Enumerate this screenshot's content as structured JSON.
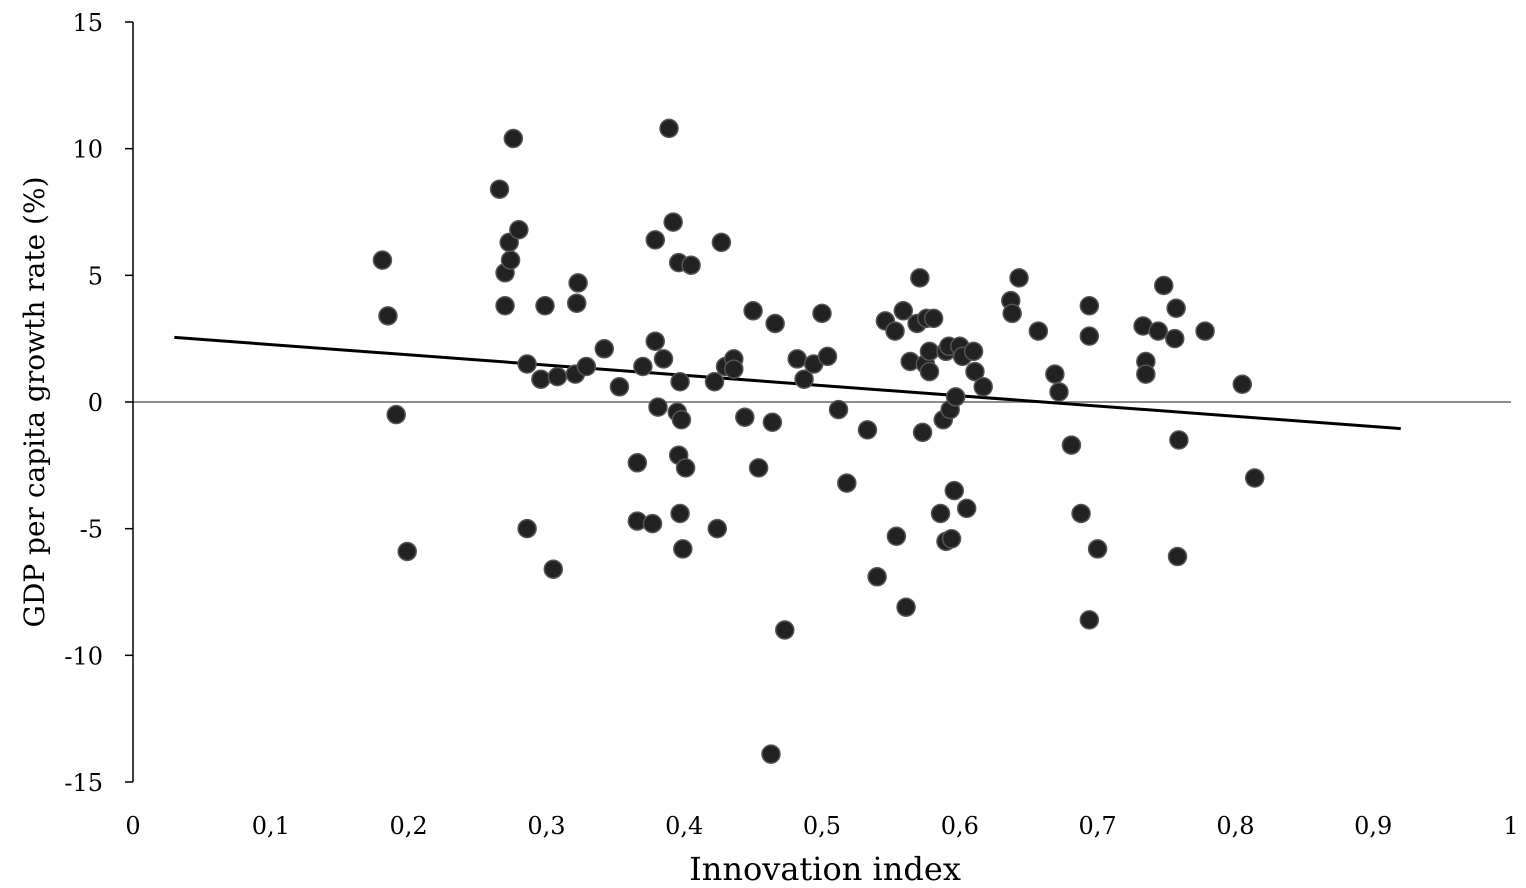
{
  "chart_data": {
    "type": "scatter",
    "title": "",
    "xlabel": "Innovation index",
    "ylabel": "GDP per capita growth rate (%)",
    "xlim": [
      0,
      1
    ],
    "ylim": [
      -15,
      15
    ],
    "x_ticks": [
      0,
      0.1,
      0.2,
      0.3,
      0.4,
      0.5,
      0.6,
      0.7,
      0.8,
      0.9,
      1
    ],
    "x_tick_labels": [
      "0",
      "0,1",
      "0,2",
      "0,3",
      "0,4",
      "0,5",
      "0,6",
      "0,7",
      "0,8",
      "0,9",
      "1"
    ],
    "y_ticks": [
      15,
      10,
      5,
      0,
      -5,
      -10,
      -15
    ],
    "y_tick_labels": [
      "15",
      "10",
      "5",
      "0",
      "-5",
      "-10",
      "-15"
    ],
    "grid": false,
    "reference_line_y": 0,
    "trendline": {
      "x": [
        0.03,
        0.92
      ],
      "y": [
        2.55,
        -1.05
      ]
    },
    "points": [
      [
        0.181,
        5.6
      ],
      [
        0.185,
        3.4
      ],
      [
        0.191,
        -0.5
      ],
      [
        0.199,
        -5.9
      ],
      [
        0.266,
        8.4
      ],
      [
        0.276,
        10.4
      ],
      [
        0.27,
        5.1
      ],
      [
        0.273,
        6.3
      ],
      [
        0.274,
        5.6
      ],
      [
        0.28,
        6.8
      ],
      [
        0.27,
        3.8
      ],
      [
        0.286,
        1.5
      ],
      [
        0.286,
        -5.0
      ],
      [
        0.296,
        0.9
      ],
      [
        0.299,
        3.8
      ],
      [
        0.305,
        -6.6
      ],
      [
        0.308,
        1.0
      ],
      [
        0.321,
        1.1
      ],
      [
        0.322,
        3.9
      ],
      [
        0.323,
        4.7
      ],
      [
        0.329,
        1.4
      ],
      [
        0.342,
        2.1
      ],
      [
        0.353,
        0.6
      ],
      [
        0.366,
        -2.4
      ],
      [
        0.366,
        -4.7
      ],
      [
        0.37,
        1.4
      ],
      [
        0.377,
        -4.8
      ],
      [
        0.379,
        6.4
      ],
      [
        0.379,
        2.4
      ],
      [
        0.381,
        -0.2
      ],
      [
        0.385,
        1.7
      ],
      [
        0.389,
        10.8
      ],
      [
        0.392,
        7.1
      ],
      [
        0.395,
        -0.4
      ],
      [
        0.396,
        5.5
      ],
      [
        0.396,
        -2.1
      ],
      [
        0.398,
        -0.7
      ],
      [
        0.397,
        0.8
      ],
      [
        0.397,
        -4.4
      ],
      [
        0.399,
        -5.8
      ],
      [
        0.401,
        -2.6
      ],
      [
        0.405,
        5.4
      ],
      [
        0.422,
        0.8
      ],
      [
        0.424,
        -5.0
      ],
      [
        0.427,
        6.3
      ],
      [
        0.43,
        1.4
      ],
      [
        0.436,
        1.7
      ],
      [
        0.436,
        1.3
      ],
      [
        0.444,
        -0.6
      ],
      [
        0.45,
        3.6
      ],
      [
        0.454,
        -2.6
      ],
      [
        0.463,
        -13.9
      ],
      [
        0.464,
        -0.8
      ],
      [
        0.466,
        3.1
      ],
      [
        0.473,
        -9.0
      ],
      [
        0.482,
        1.7
      ],
      [
        0.487,
        0.9
      ],
      [
        0.494,
        1.5
      ],
      [
        0.5,
        3.5
      ],
      [
        0.504,
        1.8
      ],
      [
        0.512,
        -0.3
      ],
      [
        0.518,
        -3.2
      ],
      [
        0.533,
        -1.1
      ],
      [
        0.54,
        -6.9
      ],
      [
        0.546,
        3.2
      ],
      [
        0.553,
        2.8
      ],
      [
        0.554,
        -5.3
      ],
      [
        0.559,
        3.6
      ],
      [
        0.561,
        -8.1
      ],
      [
        0.564,
        1.6
      ],
      [
        0.569,
        3.1
      ],
      [
        0.571,
        4.9
      ],
      [
        0.573,
        -1.2
      ],
      [
        0.575,
        1.5
      ],
      [
        0.576,
        3.3
      ],
      [
        0.578,
        2.0
      ],
      [
        0.578,
        1.2
      ],
      [
        0.581,
        3.3
      ],
      [
        0.586,
        -4.4
      ],
      [
        0.588,
        -0.7
      ],
      [
        0.59,
        2.0
      ],
      [
        0.59,
        -5.5
      ],
      [
        0.592,
        2.2
      ],
      [
        0.593,
        -0.3
      ],
      [
        0.594,
        -5.4
      ],
      [
        0.596,
        -3.5
      ],
      [
        0.597,
        0.2
      ],
      [
        0.6,
        2.2
      ],
      [
        0.602,
        1.8
      ],
      [
        0.605,
        -4.2
      ],
      [
        0.61,
        2.0
      ],
      [
        0.611,
        1.2
      ],
      [
        0.617,
        0.6
      ],
      [
        0.637,
        4.0
      ],
      [
        0.638,
        3.5
      ],
      [
        0.643,
        4.9
      ],
      [
        0.657,
        2.8
      ],
      [
        0.669,
        1.1
      ],
      [
        0.672,
        0.4
      ],
      [
        0.681,
        -1.7
      ],
      [
        0.688,
        -4.4
      ],
      [
        0.694,
        3.8
      ],
      [
        0.694,
        2.6
      ],
      [
        0.694,
        -8.6
      ],
      [
        0.7,
        -5.8
      ],
      [
        0.733,
        3.0
      ],
      [
        0.735,
        1.6
      ],
      [
        0.735,
        1.1
      ],
      [
        0.744,
        2.8
      ],
      [
        0.748,
        4.6
      ],
      [
        0.756,
        2.5
      ],
      [
        0.757,
        3.7
      ],
      [
        0.758,
        -6.1
      ],
      [
        0.759,
        -1.5
      ],
      [
        0.778,
        2.8
      ],
      [
        0.805,
        0.7
      ],
      [
        0.814,
        -3.0
      ]
    ]
  }
}
